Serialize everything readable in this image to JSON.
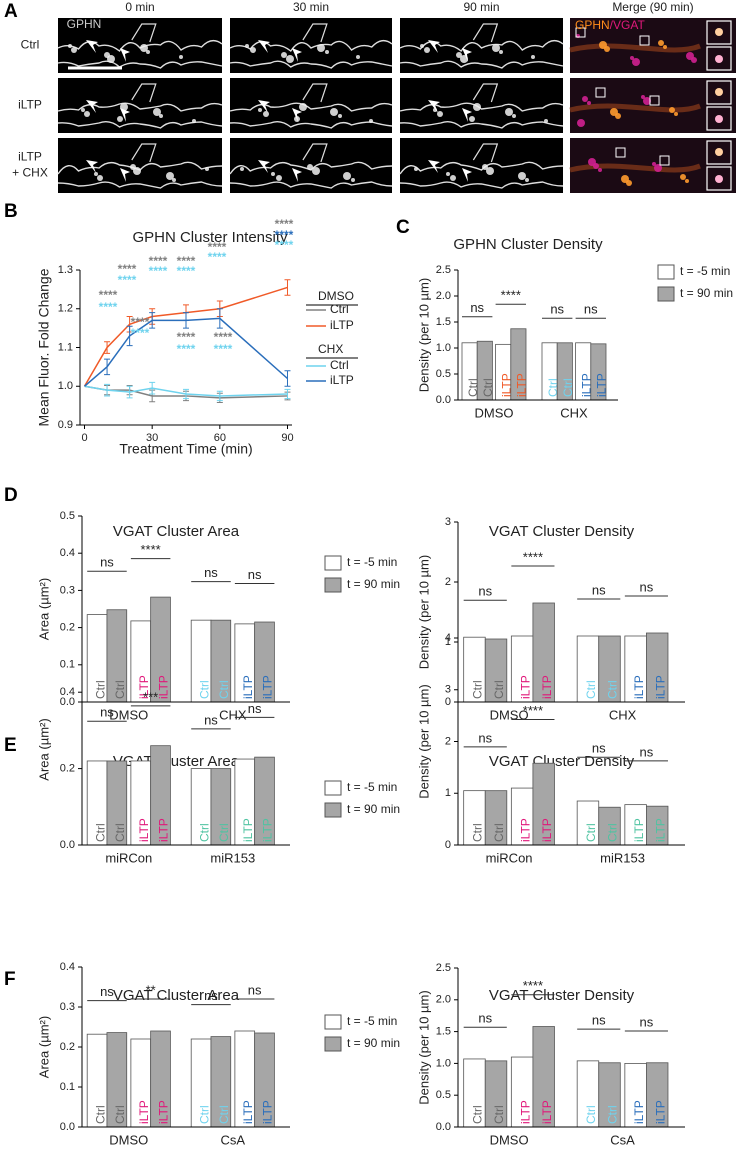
{
  "panel_labels": [
    "A",
    "B",
    "C",
    "D",
    "E",
    "F"
  ],
  "panel_a": {
    "columns": [
      "0 min",
      "30 min",
      "90 min",
      "Merge (90 min)"
    ],
    "rows": [
      [
        "Ctrl"
      ],
      [
        "iLTP"
      ],
      [
        "iLTP",
        "+ CHX"
      ]
    ],
    "image_label": "GPHN",
    "merge_label": [
      {
        "text": "GPHN",
        "color": "#ff8c1a"
      },
      {
        "text": "/VGAT",
        "color": "#e0187a"
      }
    ]
  },
  "chart_data": [
    {
      "type": "line",
      "title": "GPHN Cluster Intensity",
      "x_label": "Treatment Time (min)",
      "y_label": "Mean Fluor. Fold Change",
      "x": [
        0,
        10,
        20,
        30,
        45,
        60,
        90
      ],
      "xlim": [
        -2,
        92
      ],
      "xticks": [
        0,
        30,
        60,
        90
      ],
      "ylim": [
        0.9,
        1.3
      ],
      "yticks": [
        {
          "value": 0.9,
          "label": "0.9"
        },
        {
          "value": 1.0,
          "label": "1.0"
        },
        {
          "value": 1.1,
          "label": "1.1"
        },
        {
          "value": 1.2,
          "label": "1.2"
        },
        {
          "value": 1.3,
          "label": "1.3"
        }
      ],
      "groups": [
        {
          "name": "DMSO",
          "series": [
            {
              "name": "Ctrl",
              "color": "#808080",
              "values": [
                1,
                0.99,
                0.99,
                0.975,
                0.975,
                0.97,
                0.975
              ],
              "errors": [
                0,
                0.012,
                0.012,
                0.015,
                0.012,
                0.012,
                0.01
              ]
            },
            {
              "name": "iLTP",
              "color": "#f05a28",
              "values": [
                1,
                1.1,
                1.16,
                1.18,
                1.19,
                1.2,
                1.255
              ],
              "errors": [
                0,
                0.015,
                0.02,
                0.02,
                0.02,
                0.02,
                0.02
              ]
            }
          ]
        },
        {
          "name": "CHX",
          "series": [
            {
              "name": "Ctrl",
              "color": "#6fd3ee",
              "values": [
                1,
                0.99,
                0.985,
                0.995,
                0.98,
                0.975,
                0.98
              ],
              "errors": [
                0,
                0.015,
                0.015,
                0.015,
                0.012,
                0.012,
                0.012
              ]
            },
            {
              "name": "iLTP",
              "color": "#2a6ebb",
              "values": [
                1,
                1.05,
                1.13,
                1.17,
                1.17,
                1.175,
                1.02
              ],
              "errors": [
                0,
                0.02,
                0.025,
                0.02,
                0.02,
                0.025,
                0.02
              ]
            }
          ]
        }
      ],
      "annotations": [
        {
          "text": "****",
          "color": "#808080"
        },
        {
          "text": "****",
          "color": "#6fd3ee"
        },
        {
          "text": "****",
          "color": "#808080"
        },
        {
          "text": "****",
          "color": "#6fd3ee"
        },
        {
          "text": "****",
          "color": "#808080"
        },
        {
          "text": "****",
          "color": "#6fd3ee"
        },
        {
          "text": "****",
          "color": "#808080"
        },
        {
          "text": "****",
          "color": "#6fd3ee"
        },
        {
          "text": "****",
          "color": "#808080"
        },
        {
          "text": "****",
          "color": "#6fd3ee"
        },
        {
          "text": "****",
          "color": "#808080"
        },
        {
          "text": "****",
          "color": "#2a6ebb"
        },
        {
          "text": "****",
          "color": "#6fd3ee"
        },
        {
          "text": "****",
          "color": "#808080"
        },
        {
          "text": "****",
          "color": "#6fd3ee"
        },
        {
          "text": "****",
          "color": "#808080"
        },
        {
          "text": "****",
          "color": "#6fd3ee"
        },
        {
          "text": "****",
          "color": "#808080"
        },
        {
          "text": "****",
          "color": "#6fd3ee"
        }
      ]
    },
    {
      "type": "bar",
      "title": "GPHN Cluster Density",
      "y_label": "Density (per 10 µm)",
      "ylim": [
        0,
        2.5
      ],
      "yticks": [
        {
          "value": 0,
          "label": "0.0"
        },
        {
          "value": 0.5,
          "label": "0.5"
        },
        {
          "value": 1,
          "label": "1.0"
        },
        {
          "value": 1.5,
          "label": "1.5"
        },
        {
          "value": 2,
          "label": "2.0"
        },
        {
          "value": 2.5,
          "label": "2.5"
        }
      ],
      "categories": [
        "Ctrl",
        "iLTP",
        "Ctrl",
        "iLTP"
      ],
      "category_colors": [
        "#666666",
        "#f05a28",
        "#6fd3ee",
        "#2a6ebb"
      ],
      "groups": [
        "DMSO",
        "CHX"
      ],
      "series": [
        {
          "name": "t = -5 min",
          "color": "#ffffff",
          "values": [
            1.1,
            1.07,
            1.1,
            1.1
          ]
        },
        {
          "name": "t = 90 min",
          "color": "#a6a6a6",
          "values": [
            1.13,
            1.37,
            1.1,
            1.08
          ]
        }
      ],
      "significance": [
        "ns",
        "****",
        "ns",
        "ns"
      ]
    },
    {
      "type": "bar",
      "title": "VGAT Cluster Area",
      "y_label": "Area (µm²)",
      "ylim": [
        0,
        0.5
      ],
      "yticks": [
        {
          "value": 0,
          "label": "0.0"
        },
        0.1,
        0.2,
        0.3,
        0.4,
        0.5
      ],
      "categories": [
        "Ctrl",
        "iLTP",
        "Ctrl",
        "iLTP"
      ],
      "category_colors": [
        "#666666",
        "#e0187a",
        "#6fd3ee",
        "#2a6ebb"
      ],
      "groups": [
        "DMSO",
        "CHX"
      ],
      "series": [
        {
          "name": "t = -5 min",
          "color": "#ffffff",
          "values": [
            0.235,
            0.218,
            0.22,
            0.21
          ]
        },
        {
          "name": "t = 90 min",
          "color": "#a6a6a6",
          "values": [
            0.248,
            0.282,
            0.22,
            0.215
          ]
        }
      ],
      "significance": [
        "ns",
        "****",
        "ns",
        "ns"
      ]
    },
    {
      "type": "bar",
      "title": "VGAT Cluster Density",
      "y_label": "Density (per 10 µm)",
      "ylim": [
        0,
        3
      ],
      "yticks": [
        0,
        1,
        2,
        3
      ],
      "categories": [
        "Ctrl",
        "iLTP",
        "Ctrl",
        "iLTP"
      ],
      "category_colors": [
        "#666666",
        "#e0187a",
        "#6fd3ee",
        "#2a6ebb"
      ],
      "groups": [
        "DMSO",
        "CHX"
      ],
      "series": [
        {
          "color": "#ffffff",
          "values": [
            1.08,
            1.1,
            1.1,
            1.1
          ]
        },
        {
          "color": "#a6a6a6",
          "values": [
            1.05,
            1.65,
            1.1,
            1.15
          ]
        }
      ],
      "significance": [
        "ns",
        "****",
        "ns",
        "ns"
      ]
    },
    {
      "type": "bar",
      "title": "VGAT Cluster Area",
      "y_label": "Area (µm²)",
      "ylim": [
        0,
        0.5
      ],
      "yticks": [
        {
          "value": 0,
          "label": "0.0"
        },
        0.2,
        0.4
      ],
      "categories": [
        "Ctrl",
        "iLTP",
        "Ctrl",
        "iLTP"
      ],
      "category_colors": [
        "#666666",
        "#e0187a",
        "#4fc3a1",
        "#4fc3a1"
      ],
      "groups": [
        "miRCon",
        "miR153"
      ],
      "series": [
        {
          "name": "t = -5 min",
          "color": "#ffffff",
          "values": [
            0.22,
            0.22,
            0.2,
            0.225
          ]
        },
        {
          "name": "t = 90 min",
          "color": "#a6a6a6",
          "values": [
            0.22,
            0.26,
            0.2,
            0.23
          ]
        }
      ],
      "significance": [
        "ns",
        "***",
        "ns",
        "ns"
      ]
    },
    {
      "type": "bar",
      "title": "VGAT Cluster Density",
      "y_label": "Density (per 10 µm)",
      "ylim": [
        0,
        4
      ],
      "yticks": [
        0,
        1,
        2,
        3,
        4
      ],
      "categories": [
        "Ctrl",
        "iLTP",
        "Ctrl",
        "iLTP"
      ],
      "category_colors": [
        "#666666",
        "#e0187a",
        "#4fc3a1",
        "#4fc3a1"
      ],
      "groups": [
        "miRCon",
        "miR153"
      ],
      "series": [
        {
          "color": "#ffffff",
          "values": [
            1.05,
            1.1,
            0.85,
            0.78
          ]
        },
        {
          "color": "#a6a6a6",
          "values": [
            1.05,
            1.58,
            0.73,
            0.75
          ]
        }
      ],
      "significance": [
        "ns",
        "****",
        "ns",
        "ns"
      ]
    },
    {
      "type": "bar",
      "title": "VGAT Cluster Area",
      "y_label": "Area (µm²)",
      "ylim": [
        0,
        0.4
      ],
      "yticks": [
        {
          "value": 0,
          "label": "0.0"
        },
        0.1,
        0.2,
        0.3,
        0.4
      ],
      "categories": [
        "Ctrl",
        "iLTP",
        "Ctrl",
        "iLTP"
      ],
      "category_colors": [
        "#666666",
        "#e0187a",
        "#6fd3ee",
        "#2a6ebb"
      ],
      "groups": [
        "DMSO",
        "CsA"
      ],
      "series": [
        {
          "name": "t = -5 min",
          "color": "#ffffff",
          "values": [
            0.232,
            0.22,
            0.22,
            0.24
          ]
        },
        {
          "name": "t = 90 min",
          "color": "#a6a6a6",
          "values": [
            0.236,
            0.24,
            0.226,
            0.235
          ]
        }
      ],
      "significance": [
        "ns",
        "**",
        "ns",
        "ns"
      ]
    },
    {
      "type": "bar",
      "title": "VGAT Cluster Density",
      "y_label": "Density (per 10 µm)",
      "ylim": [
        0,
        2.5
      ],
      "yticks": [
        {
          "value": 0,
          "label": "0.0"
        },
        {
          "value": 0.5,
          "label": "0.5"
        },
        {
          "value": 1,
          "label": "1.0"
        },
        {
          "value": 1.5,
          "label": "1.5"
        },
        {
          "value": 2,
          "label": "2.0"
        },
        {
          "value": 2.5,
          "label": "2.5"
        }
      ],
      "categories": [
        "Ctrl",
        "iLTP",
        "Ctrl",
        "iLTP"
      ],
      "category_colors": [
        "#666666",
        "#e0187a",
        "#6fd3ee",
        "#2a6ebb"
      ],
      "groups": [
        "DMSO",
        "CsA"
      ],
      "series": [
        {
          "color": "#ffffff",
          "values": [
            1.07,
            1.1,
            1.04,
            1.0
          ]
        },
        {
          "color": "#a6a6a6",
          "values": [
            1.04,
            1.58,
            1.01,
            1.01
          ]
        }
      ],
      "significance": [
        "ns",
        "****",
        "ns",
        "ns"
      ]
    }
  ]
}
